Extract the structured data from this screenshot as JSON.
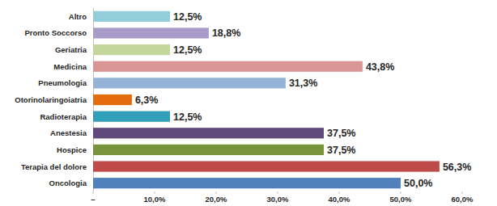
{
  "chart_data": {
    "type": "bar",
    "orientation": "horizontal",
    "categories": [
      "Altro",
      "Pronto Soccorso",
      "Geriatria",
      "Medicina",
      "Pneumologia",
      "Otorinolaringoiatria",
      "Radioterapia",
      "Anestesia",
      "Hospice",
      "Terapia del dolore",
      "Oncologia"
    ],
    "values": [
      12.5,
      18.8,
      12.5,
      43.8,
      31.3,
      6.3,
      12.5,
      37.5,
      37.5,
      56.3,
      50.0
    ],
    "value_labels": [
      "12,5%",
      "18,8%",
      "12,5%",
      "43,8%",
      "31,3%",
      "6,3%",
      "12,5%",
      "37,5%",
      "37,5%",
      "56,3%",
      "50,0%"
    ],
    "colors": [
      "#92cddc",
      "#a99bc7",
      "#c3d69b",
      "#d99694",
      "#95b3d7",
      "#e46c0a",
      "#31a0b8",
      "#604a7b",
      "#77933c",
      "#be4b48",
      "#4f81bd"
    ],
    "xlim": [
      0,
      60
    ],
    "xticks": [
      {
        "value": 0,
        "label": "–"
      },
      {
        "value": 10,
        "label": "10,0%"
      },
      {
        "value": 20,
        "label": "20,0%"
      },
      {
        "value": 30,
        "label": "30,0%"
      },
      {
        "value": 40,
        "label": "40,0%"
      },
      {
        "value": 50,
        "label": "50,0%"
      },
      {
        "value": 60,
        "label": "60,0%"
      }
    ],
    "grid": false,
    "data_labels": true
  }
}
